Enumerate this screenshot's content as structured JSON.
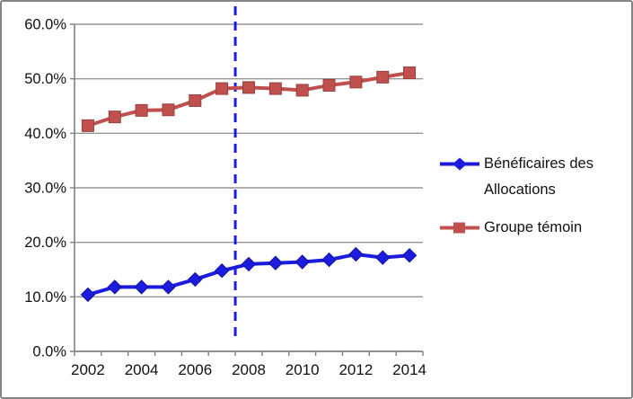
{
  "window": {
    "background": "#ffffff",
    "border_color": "#848484"
  },
  "colors": {
    "series_blue": "#1C1CDF",
    "series_blue_dark": "#12129E",
    "series_red": "#C0504D",
    "series_red_dark": "#97403E",
    "gridline": "#969696",
    "axis": "#808080",
    "text": "#111111"
  },
  "legend": {
    "items": [
      {
        "label": "Bénéficaires des Allocations",
        "marker": "diamond",
        "color": "#1C1CDF"
      },
      {
        "label": "Groupe témoin",
        "marker": "square",
        "color": "#C0504D"
      }
    ]
  },
  "chart_data": {
    "type": "line",
    "title": "",
    "xlabel": "",
    "ylabel": "",
    "categories": [
      2002,
      2003,
      2004,
      2005,
      2006,
      2007,
      2008,
      2009,
      2010,
      2011,
      2012,
      2013,
      2014
    ],
    "x_axis_tick_labels": [
      "2002",
      "2004",
      "2006",
      "2008",
      "2010",
      "2012",
      "2014"
    ],
    "y_axis_tick_labels": [
      "0.0%",
      "10.0%",
      "20.0%",
      "30.0%",
      "40.0%",
      "50.0%",
      "60.0%"
    ],
    "ylim": [
      0,
      60
    ],
    "ytick_step": 10,
    "grid": true,
    "legend_position": "right",
    "series": [
      {
        "name": "Bénéficaires des Allocations",
        "marker": "diamond",
        "color": "#1C1CDF",
        "values": [
          10.4,
          11.8,
          11.8,
          11.8,
          13.2,
          14.8,
          16.0,
          16.2,
          16.4,
          16.8,
          17.8,
          17.2,
          17.6
        ]
      },
      {
        "name": "Groupe témoin",
        "marker": "square",
        "color": "#C0504D",
        "values": [
          41.4,
          43.0,
          44.2,
          44.3,
          46.0,
          48.2,
          48.4,
          48.2,
          47.9,
          48.8,
          49.4,
          50.3,
          51.1
        ]
      }
    ],
    "annotation_vline": {
      "x": 2007.5,
      "style": "dashed",
      "color": "#1C1CDF"
    }
  }
}
